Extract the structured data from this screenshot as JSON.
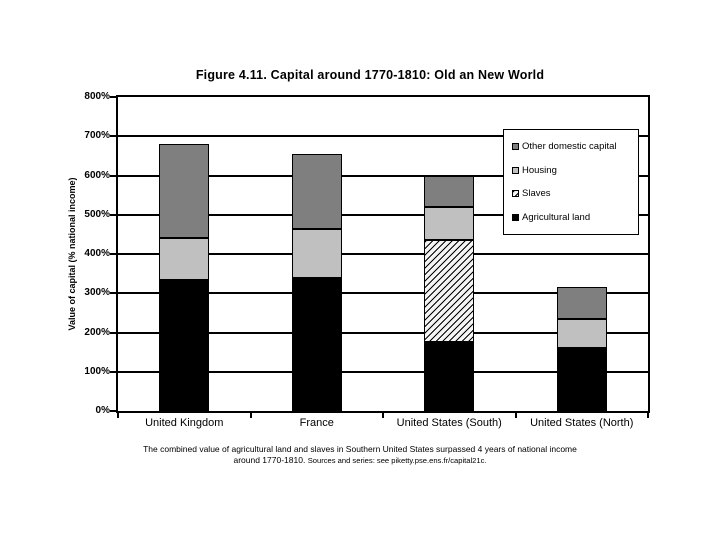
{
  "chart_data": {
    "type": "bar",
    "stacked": true,
    "title": "Figure 4.11. Capital around 1770-1810: Old an New World",
    "ylabel": "Value of capital (% national income)",
    "xlabel": "",
    "ylim": [
      0,
      800
    ],
    "ytick_step": 100,
    "ytick_suffix": "%",
    "grid": true,
    "categories": [
      "United Kingdom",
      "France",
      "United States (South)",
      "United States (North)"
    ],
    "series": [
      {
        "name": "Agricultural land",
        "values": [
          335,
          340,
          175,
          160
        ],
        "color": "#000000",
        "pattern": "solid"
      },
      {
        "name": "Slaves",
        "values": [
          0,
          0,
          260,
          0
        ],
        "color": "#f4f4f4",
        "pattern": "diagonal-hatch"
      },
      {
        "name": "Housing",
        "values": [
          105,
          125,
          85,
          75
        ],
        "color": "#c0c0c0",
        "pattern": "solid"
      },
      {
        "name": "Other domestic capital",
        "values": [
          240,
          190,
          80,
          80
        ],
        "color": "#7f7f7f",
        "pattern": "solid"
      }
    ],
    "totals": [
      680,
      655,
      600,
      315
    ],
    "legend_position": "upper-right",
    "legend_order": [
      "Other domestic capital",
      "Housing",
      "Slaves",
      "Agricultural land"
    ],
    "caption": {
      "line1": "The combined value of agricultural land and slaves in Southern United States surpassed 4 years of national income",
      "line2": "around 1770-1810.",
      "line2_source": "Sources and series: see piketty.pse.ens.fr/capital21c."
    }
  }
}
